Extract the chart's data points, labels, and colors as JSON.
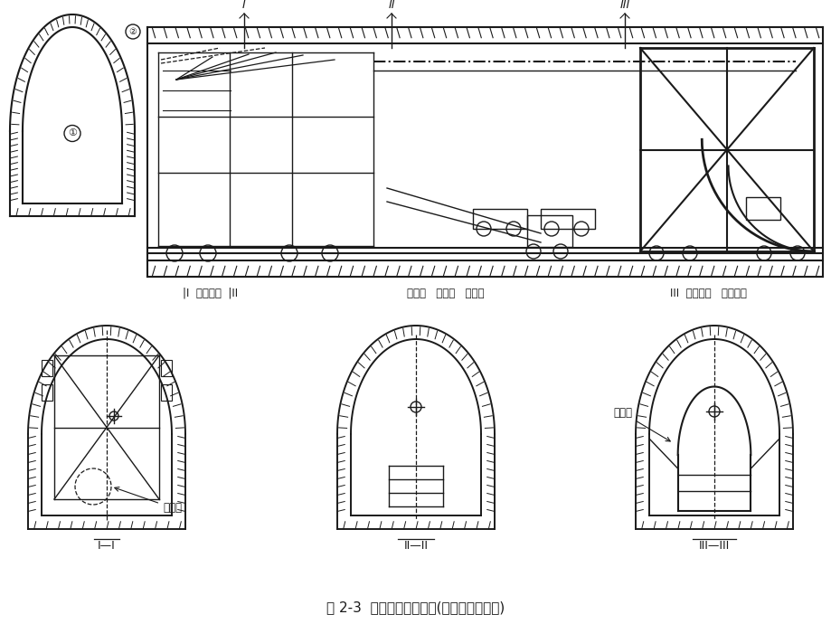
{
  "title": "图 2-3  全断面一次开挖法(此图为有轨运输)",
  "background_color": "#ffffff",
  "line_color": "#1a1a1a",
  "label_left": "|I  钻孔台车  |II",
  "label_mid": "装渣机  通风管  电瓶车",
  "label_right": "III  模板台车  混凝土泵",
  "annotation_zaozha": "装渣机",
  "annotation_qianjin": "千斤顶",
  "cross_label_1": "I—I",
  "cross_label_2": "II—II",
  "cross_label_3": "III—III",
  "roman_I": "I",
  "roman_II": "II",
  "roman_III": "III",
  "circle_I": "①",
  "circle_II": "②",
  "fig_width": 920,
  "fig_height": 690
}
